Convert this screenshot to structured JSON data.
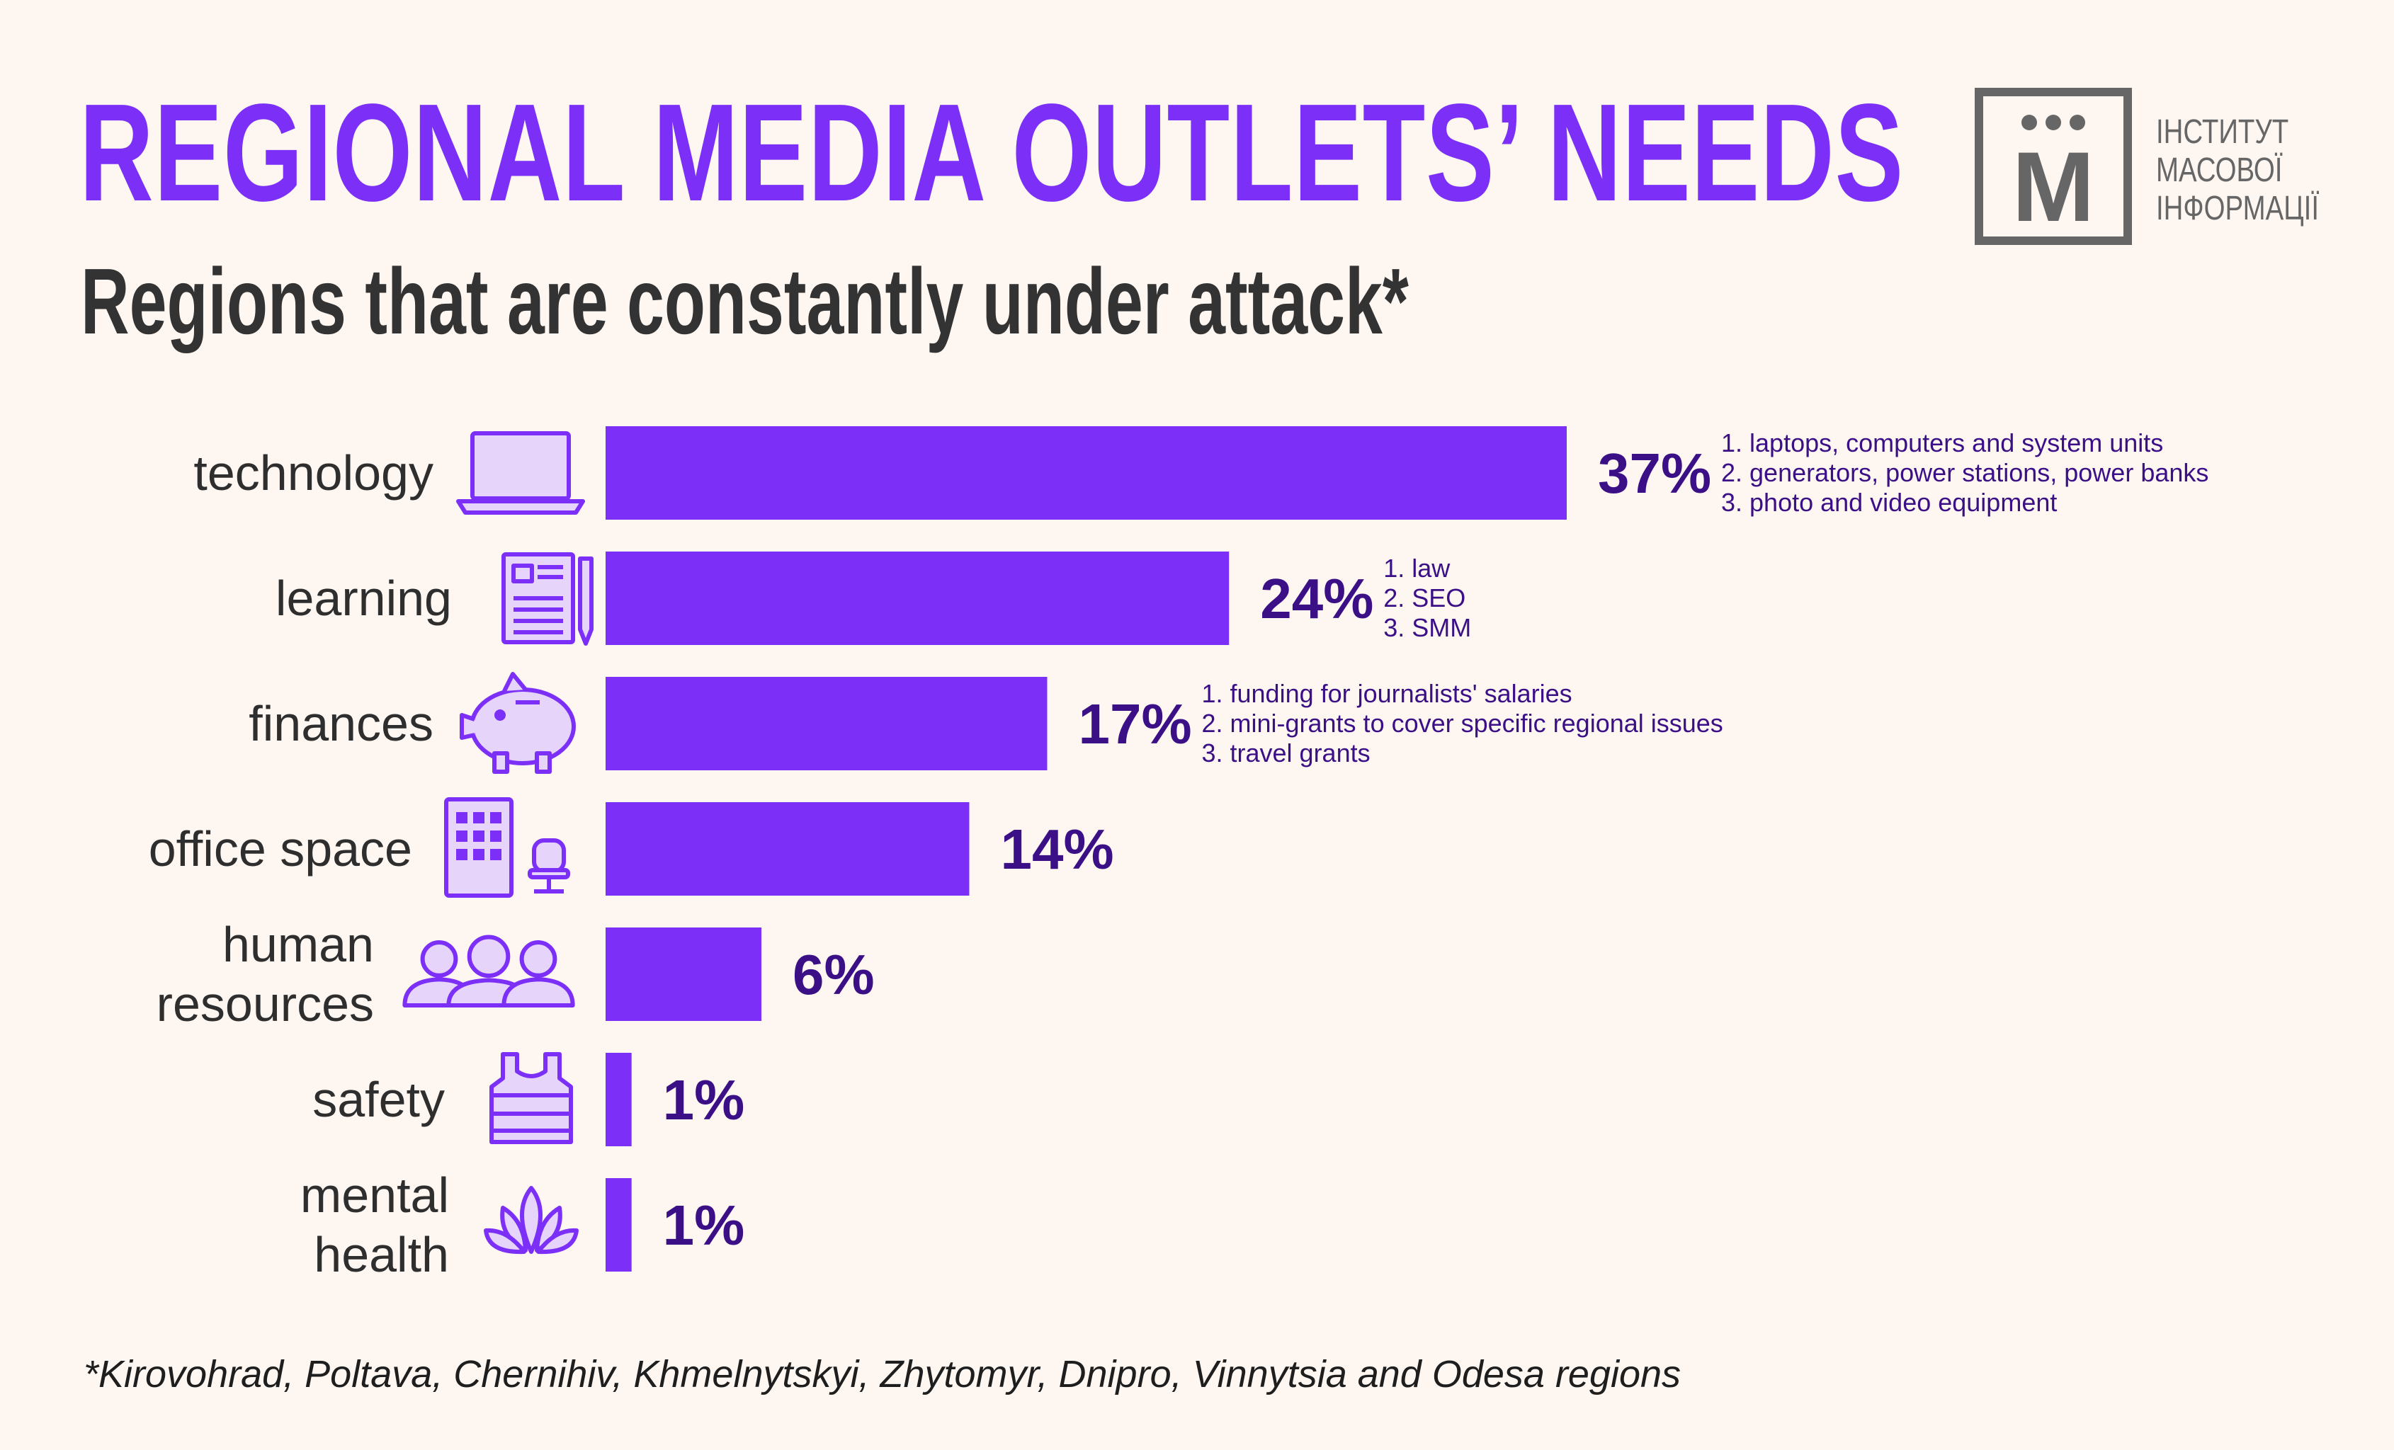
{
  "colors": {
    "background": "#fdf6f1",
    "bar": "#7b2ff7",
    "title": "#7b2ff7",
    "subtitle": "#333333",
    "percent_label": "#3b1087",
    "icon_fill": "#e6d4fb",
    "icon_stroke": "#7b2ff7",
    "logo": "#666666"
  },
  "logo": {
    "letter": "М",
    "lines": [
      "ІНСТИТУТ",
      "МАСОВОЇ",
      "ІНФОРМАЦІЇ"
    ]
  },
  "footnote": "*Kirovohrad, Poltava, Chernihiv, Khmelnytskyi, Zhytomyr, Dnipro, Vinnytsia and Odesa regions",
  "chart_data": {
    "type": "bar",
    "orientation": "horizontal",
    "title": "REGIONAL MEDIA OUTLETS’ NEEDS",
    "subtitle": "Regions that are constantly under attack*",
    "xlim": [
      0,
      37
    ],
    "grid": false,
    "categories": [
      "technology",
      "learning",
      "finances",
      "office space",
      "human resources",
      "safety",
      "mental health"
    ],
    "category_lines": [
      [
        "technology"
      ],
      [
        "learning"
      ],
      [
        "finances"
      ],
      [
        "office space"
      ],
      [
        "human",
        "resources"
      ],
      [
        "safety"
      ],
      [
        "mental",
        "health"
      ]
    ],
    "icons": [
      "laptop-icon",
      "document-pen-icon",
      "piggy-bank-icon",
      "building-chair-icon",
      "people-icon",
      "vest-icon",
      "lotus-icon"
    ],
    "values": [
      37,
      24,
      17,
      14,
      6,
      1,
      1
    ],
    "value_labels": [
      "37%",
      "24%",
      "17%",
      "14%",
      "6%",
      "1%",
      "1%"
    ],
    "notes": [
      [
        "1. laptops, computers and system units",
        "2. generators, power stations, power banks",
        "3. photo and video equipment"
      ],
      [
        "1. law",
        "2. SEO",
        "3. SMM"
      ],
      [
        "1. funding for journalists' salaries",
        "2. mini-grants to cover specific regional issues",
        "3. travel grants"
      ],
      [],
      [],
      [],
      []
    ]
  }
}
